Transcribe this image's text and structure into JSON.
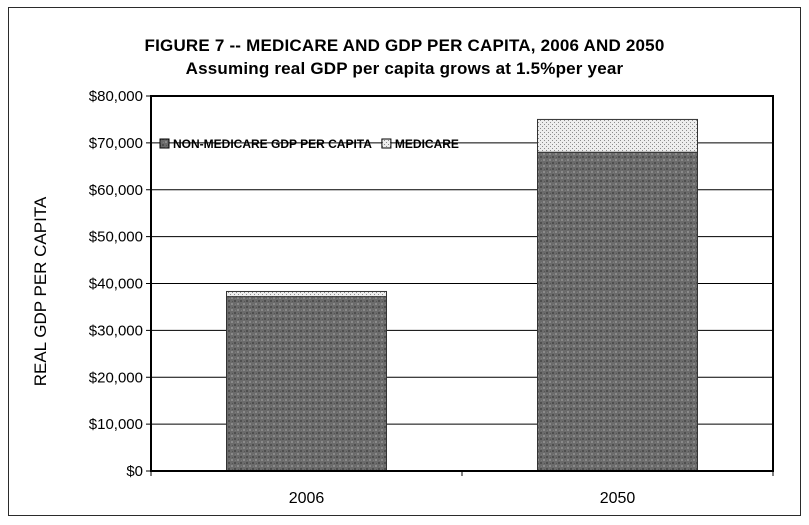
{
  "chart_data": {
    "type": "bar",
    "stacked": true,
    "title": "FIGURE 7 -- MEDICARE AND GDP PER CAPITA, 2006 AND 2050",
    "subtitle": "Assuming real GDP per capita grows at 1.5%per year",
    "xlabel": "",
    "ylabel": "REAL GDP PER CAPITA",
    "categories": [
      "2006",
      "2050"
    ],
    "series": [
      {
        "name": "NON-MEDICARE GDP PER CAPITA",
        "values": [
          37200,
          68000
        ],
        "color": "#6e6e6e"
      },
      {
        "name": "MEDICARE",
        "values": [
          1100,
          7000
        ],
        "color": "#e9e9e9"
      }
    ],
    "ylim": [
      0,
      80000
    ],
    "y_ticks": [
      0,
      10000,
      20000,
      30000,
      40000,
      50000,
      60000,
      70000,
      80000
    ],
    "y_tick_labels": [
      "$0",
      "$10,000",
      "$20,000",
      "$30,000",
      "$40,000",
      "$50,000",
      "$60,000",
      "$70,000",
      "$80,000"
    ],
    "grid": true,
    "legend_position": "top-left"
  }
}
